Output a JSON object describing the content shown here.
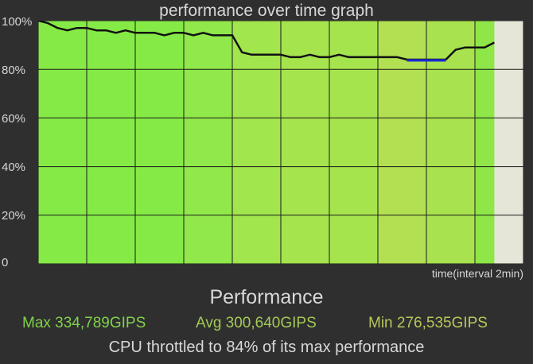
{
  "graph": {
    "title": "performance over time graph",
    "x_label": "time(interval 2min)",
    "y_ticks": [
      "100%",
      "80%",
      "60%",
      "40%",
      "20%",
      "0"
    ]
  },
  "summary": {
    "title": "Performance",
    "max": "Max 334,789GIPS",
    "avg": "Avg 300,640GIPS",
    "min": "Min 276,535GIPS",
    "throttle_text": "CPU throttled to 84% of its max performance"
  },
  "colors": {
    "background": "#2f2f2f",
    "plot_empty": "#e6e6d8",
    "max_color": "#7fd24a",
    "avg_color": "#a3c957",
    "min_color": "#b9c65a",
    "line_color": "#111111",
    "dip_color": "#1a2bd8"
  },
  "chart_data": {
    "type": "line",
    "title": "performance over time graph",
    "xlabel": "time(interval 2min)",
    "ylabel": "",
    "ylim": [
      0,
      100
    ],
    "x_intervals": 10,
    "x": [
      0,
      0.2,
      0.4,
      0.6,
      0.8,
      1.0,
      1.2,
      1.4,
      1.6,
      1.8,
      2.0,
      2.2,
      2.4,
      2.6,
      2.8,
      3.0,
      3.2,
      3.4,
      3.6,
      3.8,
      4.0,
      4.2,
      4.4,
      4.6,
      4.8,
      5.0,
      5.2,
      5.4,
      5.6,
      5.8,
      6.0,
      6.2,
      6.4,
      6.6,
      6.8,
      7.0,
      7.2,
      7.4,
      7.6,
      7.8,
      8.0,
      8.2,
      8.4,
      8.6,
      8.8,
      9.0,
      9.2,
      9.4
    ],
    "series": [
      {
        "values": [
          100,
          99,
          97,
          96,
          97,
          97,
          96,
          96,
          95,
          96,
          95,
          95,
          95,
          94,
          95,
          95,
          94,
          95,
          94,
          94,
          94,
          87,
          86,
          86,
          86,
          86,
          85,
          85,
          86,
          85,
          85,
          86,
          85,
          85,
          85,
          85,
          85,
          85,
          84,
          84,
          84,
          84,
          84,
          88,
          89,
          89,
          89,
          91
        ]
      }
    ],
    "bar_colors_by_interval": [
      "#86ea46",
      "#86ea46",
      "#86ea46",
      "#90e84a",
      "#a0e64c",
      "#a6e44e",
      "#a6e44e",
      "#b2e052",
      "#a8e24e",
      "#8ee648"
    ],
    "fill_end_fraction": 0.94
  }
}
